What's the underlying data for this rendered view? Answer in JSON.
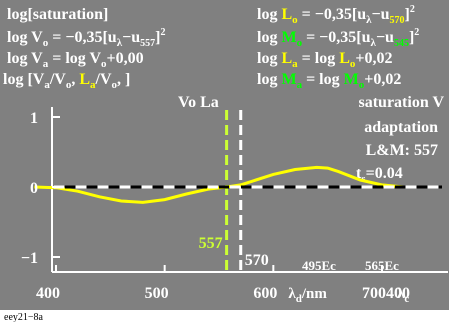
{
  "colors": {
    "background": "#808080",
    "curve": "#ffff00",
    "marker_557": "#ccff33",
    "marker_570": "#ffffff",
    "text": "#ffffff",
    "label_L": "#ffff00",
    "label_M": "#00ff00"
  },
  "header_left": {
    "line1": "log[saturation]",
    "line2": {
      "a": "log V",
      "b": "o",
      "c": " = −0,35[u",
      "d": "λ",
      "e": "−u",
      "f": "557",
      "g": "]",
      "h": "2"
    },
    "line3": {
      "a": "log V",
      "b": "a",
      "c": " = log V",
      "d": "o",
      "e": "+0,00"
    },
    "line4": {
      "a": "log [V",
      "b": "a",
      "c": "/V",
      "d": "o",
      "e": ", ",
      "f": "L",
      "g": "a",
      "h": "/V",
      "i": "o",
      "j": ", ]"
    }
  },
  "header_right": {
    "line1": {
      "a": "log ",
      "b": "L",
      "c": "o",
      "d": " = −0,35[u",
      "e": "λ",
      "f": "−u",
      "g": "570",
      "h": "]",
      "i": "2"
    },
    "line2": {
      "a": "log ",
      "b": "M",
      "c": "o",
      "d": " = −0,35[u",
      "e": "λ",
      "f": "−u",
      "g": "545",
      "h": "]",
      "i": "2"
    },
    "line3": {
      "a": "log ",
      "b": "L",
      "c": "a",
      "d": " = log ",
      "e": "L",
      "f": "o",
      "g": "+0,02"
    },
    "line4": {
      "a": "log ",
      "b": "M",
      "c": "a",
      "d": " = log ",
      "e": "M",
      "f": "o",
      "g": "+0,02"
    }
  },
  "center_label": "Vo La",
  "side_notes": {
    "line1": "saturation V",
    "line2": "adaptation",
    "line3": "L&M: 557",
    "line4": {
      "a": "t",
      "b": "s",
      "c": "=0.04"
    }
  },
  "marker_labels": {
    "m557": "557",
    "m570": "570"
  },
  "secondary_labels": {
    "a": "495Ec",
    "b": "565Ec"
  },
  "footer": "eey21−8a",
  "chart_data": {
    "type": "line",
    "title": "",
    "xlabel": "λd/nm",
    "ylabel": "",
    "xlim": [
      380,
      720
    ],
    "ylim": [
      -1.4,
      1.4
    ],
    "x_ticks": [
      {
        "value": 400,
        "label": "400"
      },
      {
        "value": 500,
        "label": "500"
      },
      {
        "value": 600,
        "label": "600"
      },
      {
        "value": 700,
        "label": "700"
      }
    ],
    "x_tick_suffixes": [
      {
        "after_value": 600,
        "parts": {
          "a": "λ",
          "b": "d",
          "c": "/nm"
        }
      },
      {
        "after_value": 700,
        "parts": {
          "a": "λ",
          "b": "c"
        }
      }
    ],
    "x_extra_tick": {
      "position": 748,
      "label": "400"
    },
    "y_ticks": [
      {
        "value": 1,
        "label": "1"
      },
      {
        "value": 0,
        "label": "0"
      },
      {
        "value": -1,
        "label": "−1"
      }
    ],
    "vertical_markers": [
      {
        "x": 557,
        "label": "557",
        "style": "dashed"
      },
      {
        "x": 570,
        "label": "570",
        "style": "dashed"
      }
    ],
    "series": [
      {
        "x": [
          380,
          400,
          420,
          440,
          460,
          480,
          500,
          520,
          540,
          557,
          570,
          580,
          600,
          620,
          640,
          650,
          660,
          680,
          700,
          720
        ],
        "y": [
          0.0,
          -0.01,
          -0.06,
          -0.14,
          -0.2,
          -0.22,
          -0.18,
          -0.1,
          -0.03,
          0.0,
          0.03,
          0.08,
          0.18,
          0.25,
          0.28,
          0.27,
          0.22,
          0.1,
          0.03,
          0.0
        ]
      }
    ],
    "reference_line": {
      "y": 0,
      "style": "dashed"
    },
    "grid": false,
    "legend": "none"
  }
}
